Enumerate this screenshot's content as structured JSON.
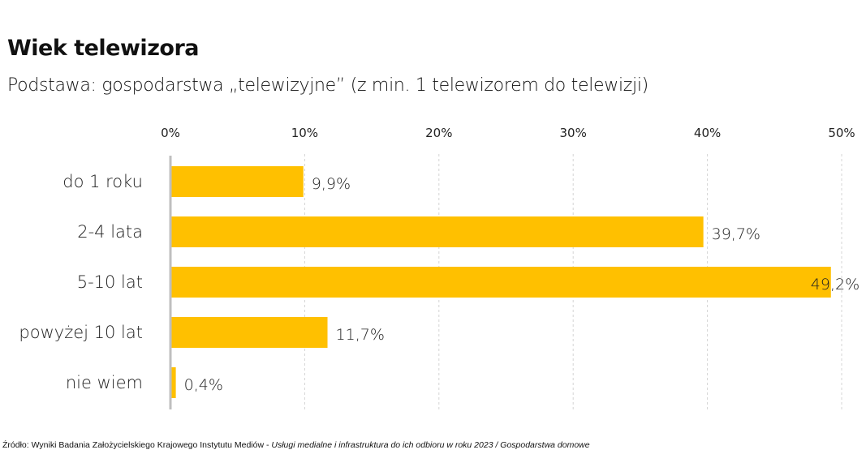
{
  "title": "Wiek telewizora",
  "subtitle": "Podstawa: gospodarstwa „telewizyjne” (z min. 1 telewizorem do telewizji)",
  "source": {
    "prefix": "Źródło: Wyniki Badania Założycielskiego Krajowego Instytutu Mediów - ",
    "italic": "Usługi medialne i infrastruktura do ich odbioru w roku 2023 / Gospodarstwa domowe"
  },
  "chart_data": {
    "type": "bar",
    "orientation": "horizontal",
    "title": "Wiek telewizora",
    "categories": [
      "do 1 roku",
      "2-4 lata",
      "5-10 lat",
      "powyżej 10 lat",
      "nie wiem"
    ],
    "values": [
      9.9,
      39.7,
      49.2,
      11.7,
      0.4
    ],
    "value_labels": [
      "9,9%",
      "39,7%",
      "49,2%",
      "11,7%",
      "0,4%"
    ],
    "xlim": [
      0,
      50
    ],
    "xticks": [
      0,
      10,
      20,
      30,
      40,
      50
    ],
    "xtick_labels": [
      "0%",
      "10%",
      "20%",
      "30%",
      "40%",
      "50%"
    ],
    "xaxis_position": "top",
    "grid": true,
    "bar_color": "#FFC000",
    "xlabel": "",
    "ylabel": ""
  }
}
